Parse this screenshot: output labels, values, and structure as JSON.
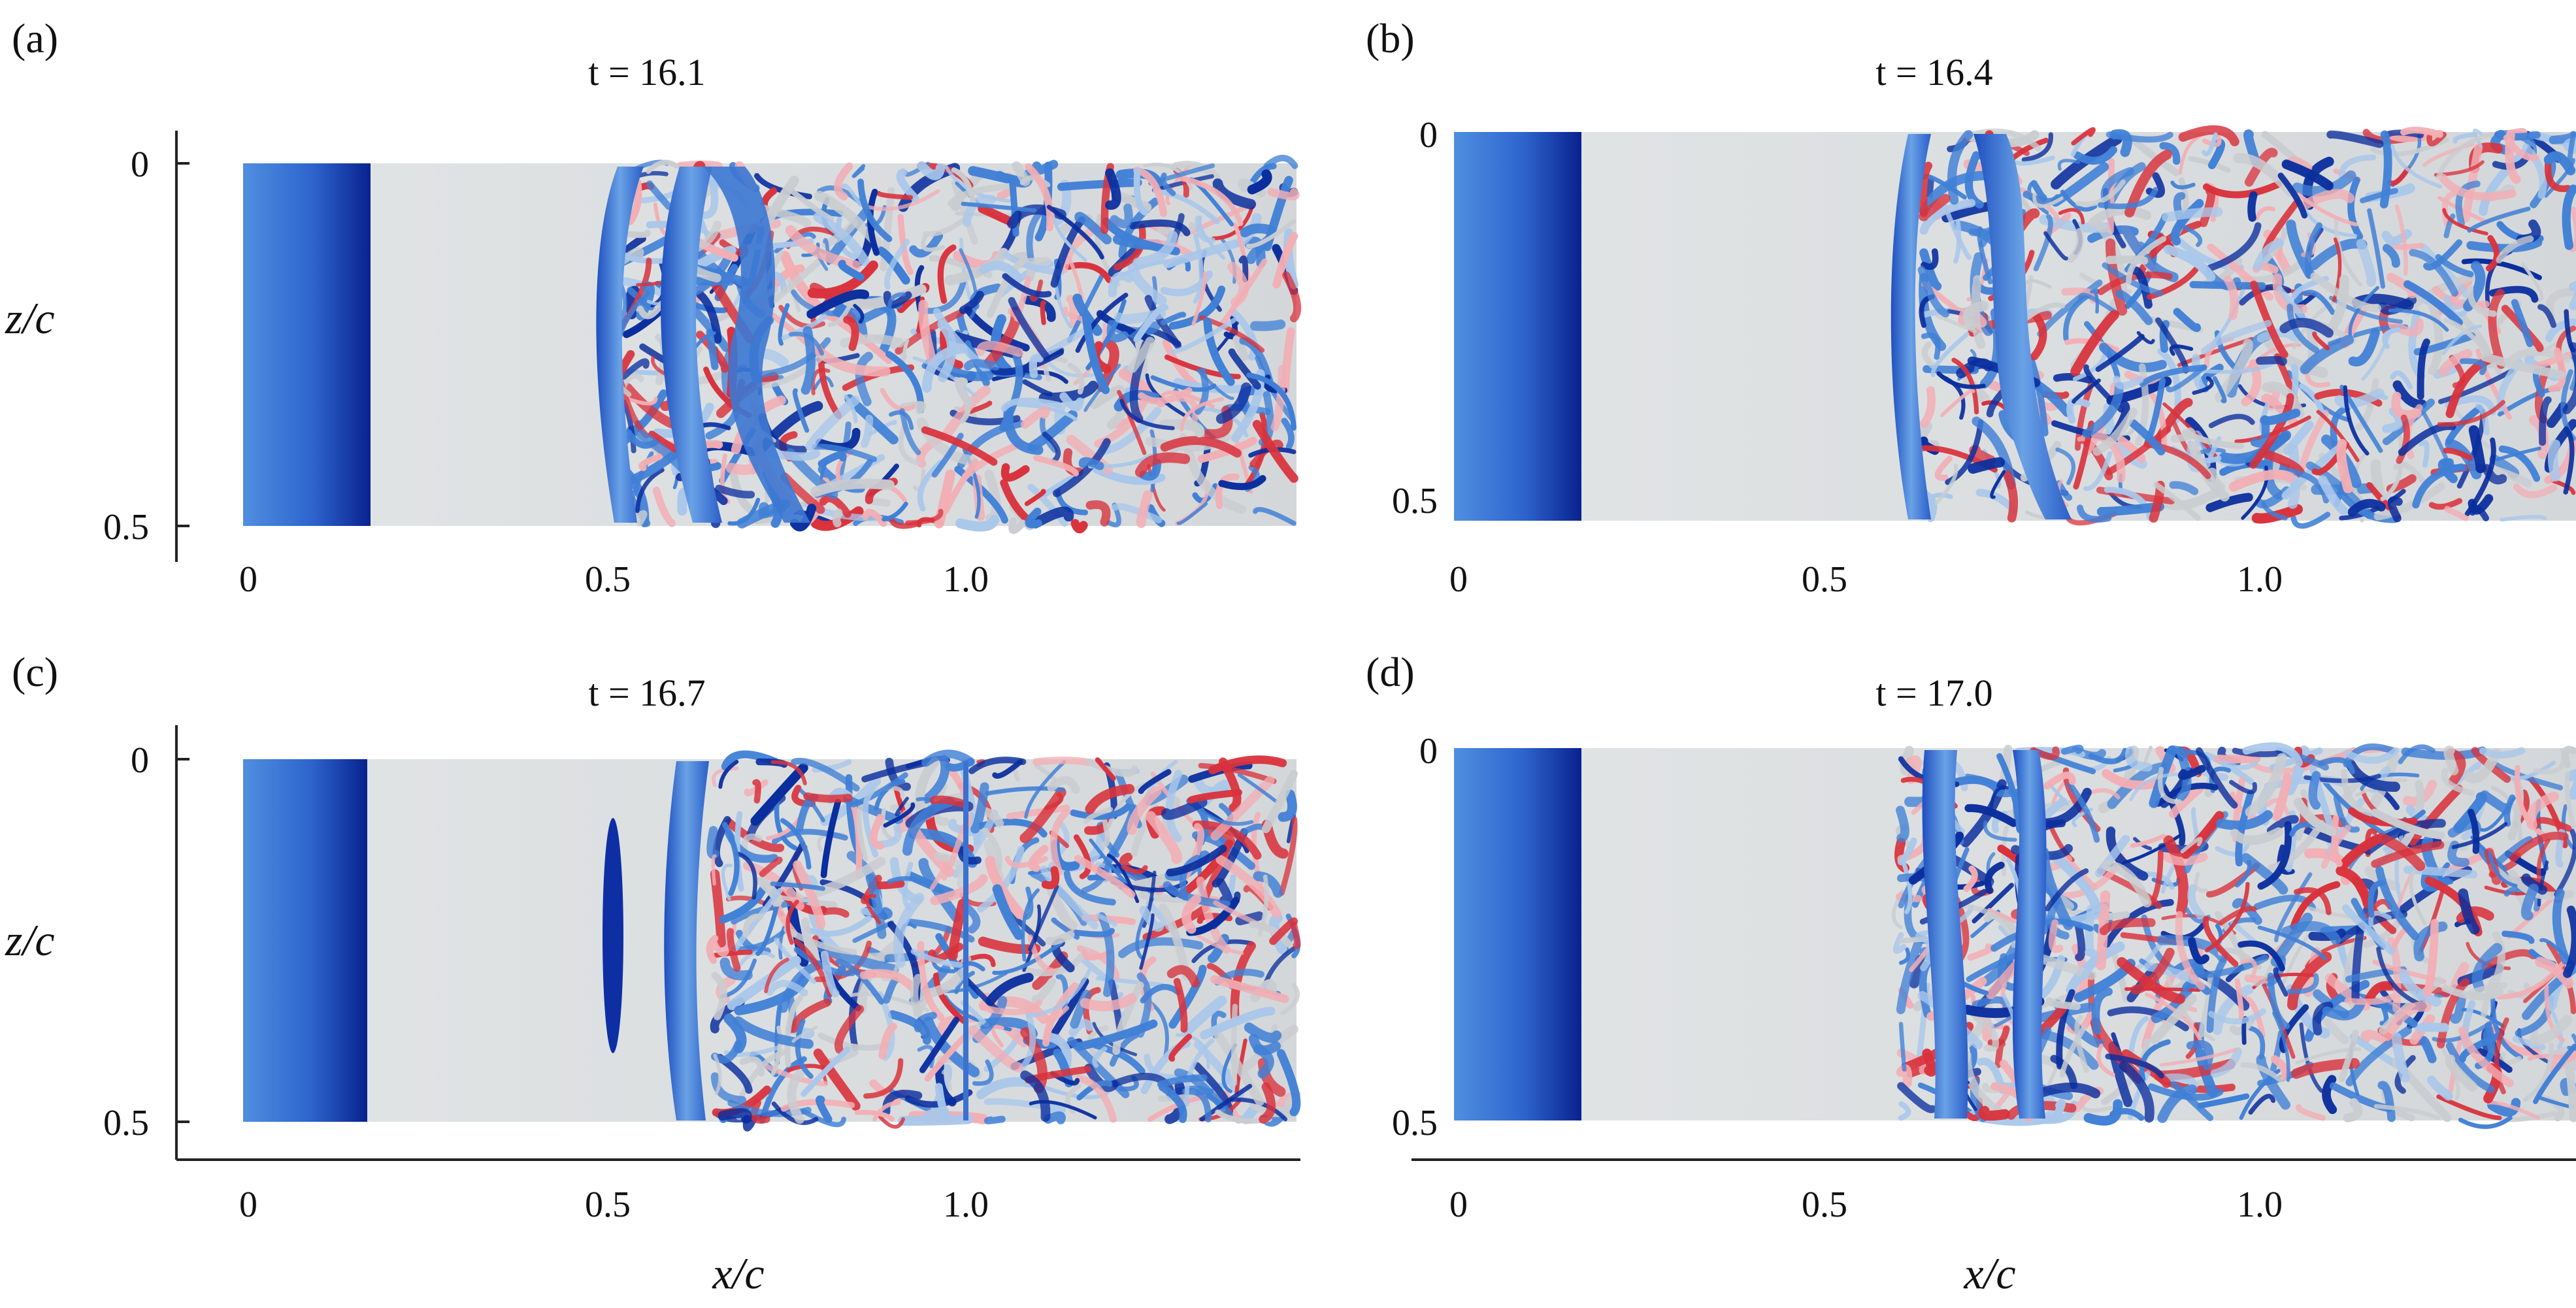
{
  "figure": {
    "panels": [
      {
        "id": "a",
        "label": "(a)",
        "time_label": "t = 16.1",
        "t": 16.1,
        "xticks": [
          "0",
          "0.5",
          "1.0"
        ],
        "zticks": [
          "0",
          "0.5"
        ]
      },
      {
        "id": "b",
        "label": "(b)",
        "time_label": "t = 16.4",
        "t": 16.4,
        "xticks": [
          "0",
          "0.5",
          "1.0"
        ],
        "zticks": [
          "0",
          "0.5"
        ]
      },
      {
        "id": "c",
        "label": "(c)",
        "time_label": "t = 16.7",
        "t": 16.7,
        "xticks": [
          "0",
          "0.5",
          "1.0"
        ],
        "zticks": [
          "0",
          "0.5"
        ]
      },
      {
        "id": "d",
        "label": "(d)",
        "time_label": "t = 17.0",
        "t": 17.0,
        "xticks": [
          "0",
          "0.5",
          "1.0"
        ],
        "zticks": [
          "0",
          "0.5"
        ]
      }
    ],
    "axes": {
      "xlabel": "x/c",
      "zlabel": "z/c"
    },
    "colors": {
      "surface": "#dde0e2",
      "vortex_blue": "#3f7fd6",
      "vortex_dark_blue": "#0a2e9e",
      "vortex_light_blue": "#a9c7ea",
      "vortex_red": "#d9323c",
      "vortex_pink": "#f2aeb4",
      "vortex_grey": "#c9ccd0",
      "axis": "#222222"
    }
  }
}
